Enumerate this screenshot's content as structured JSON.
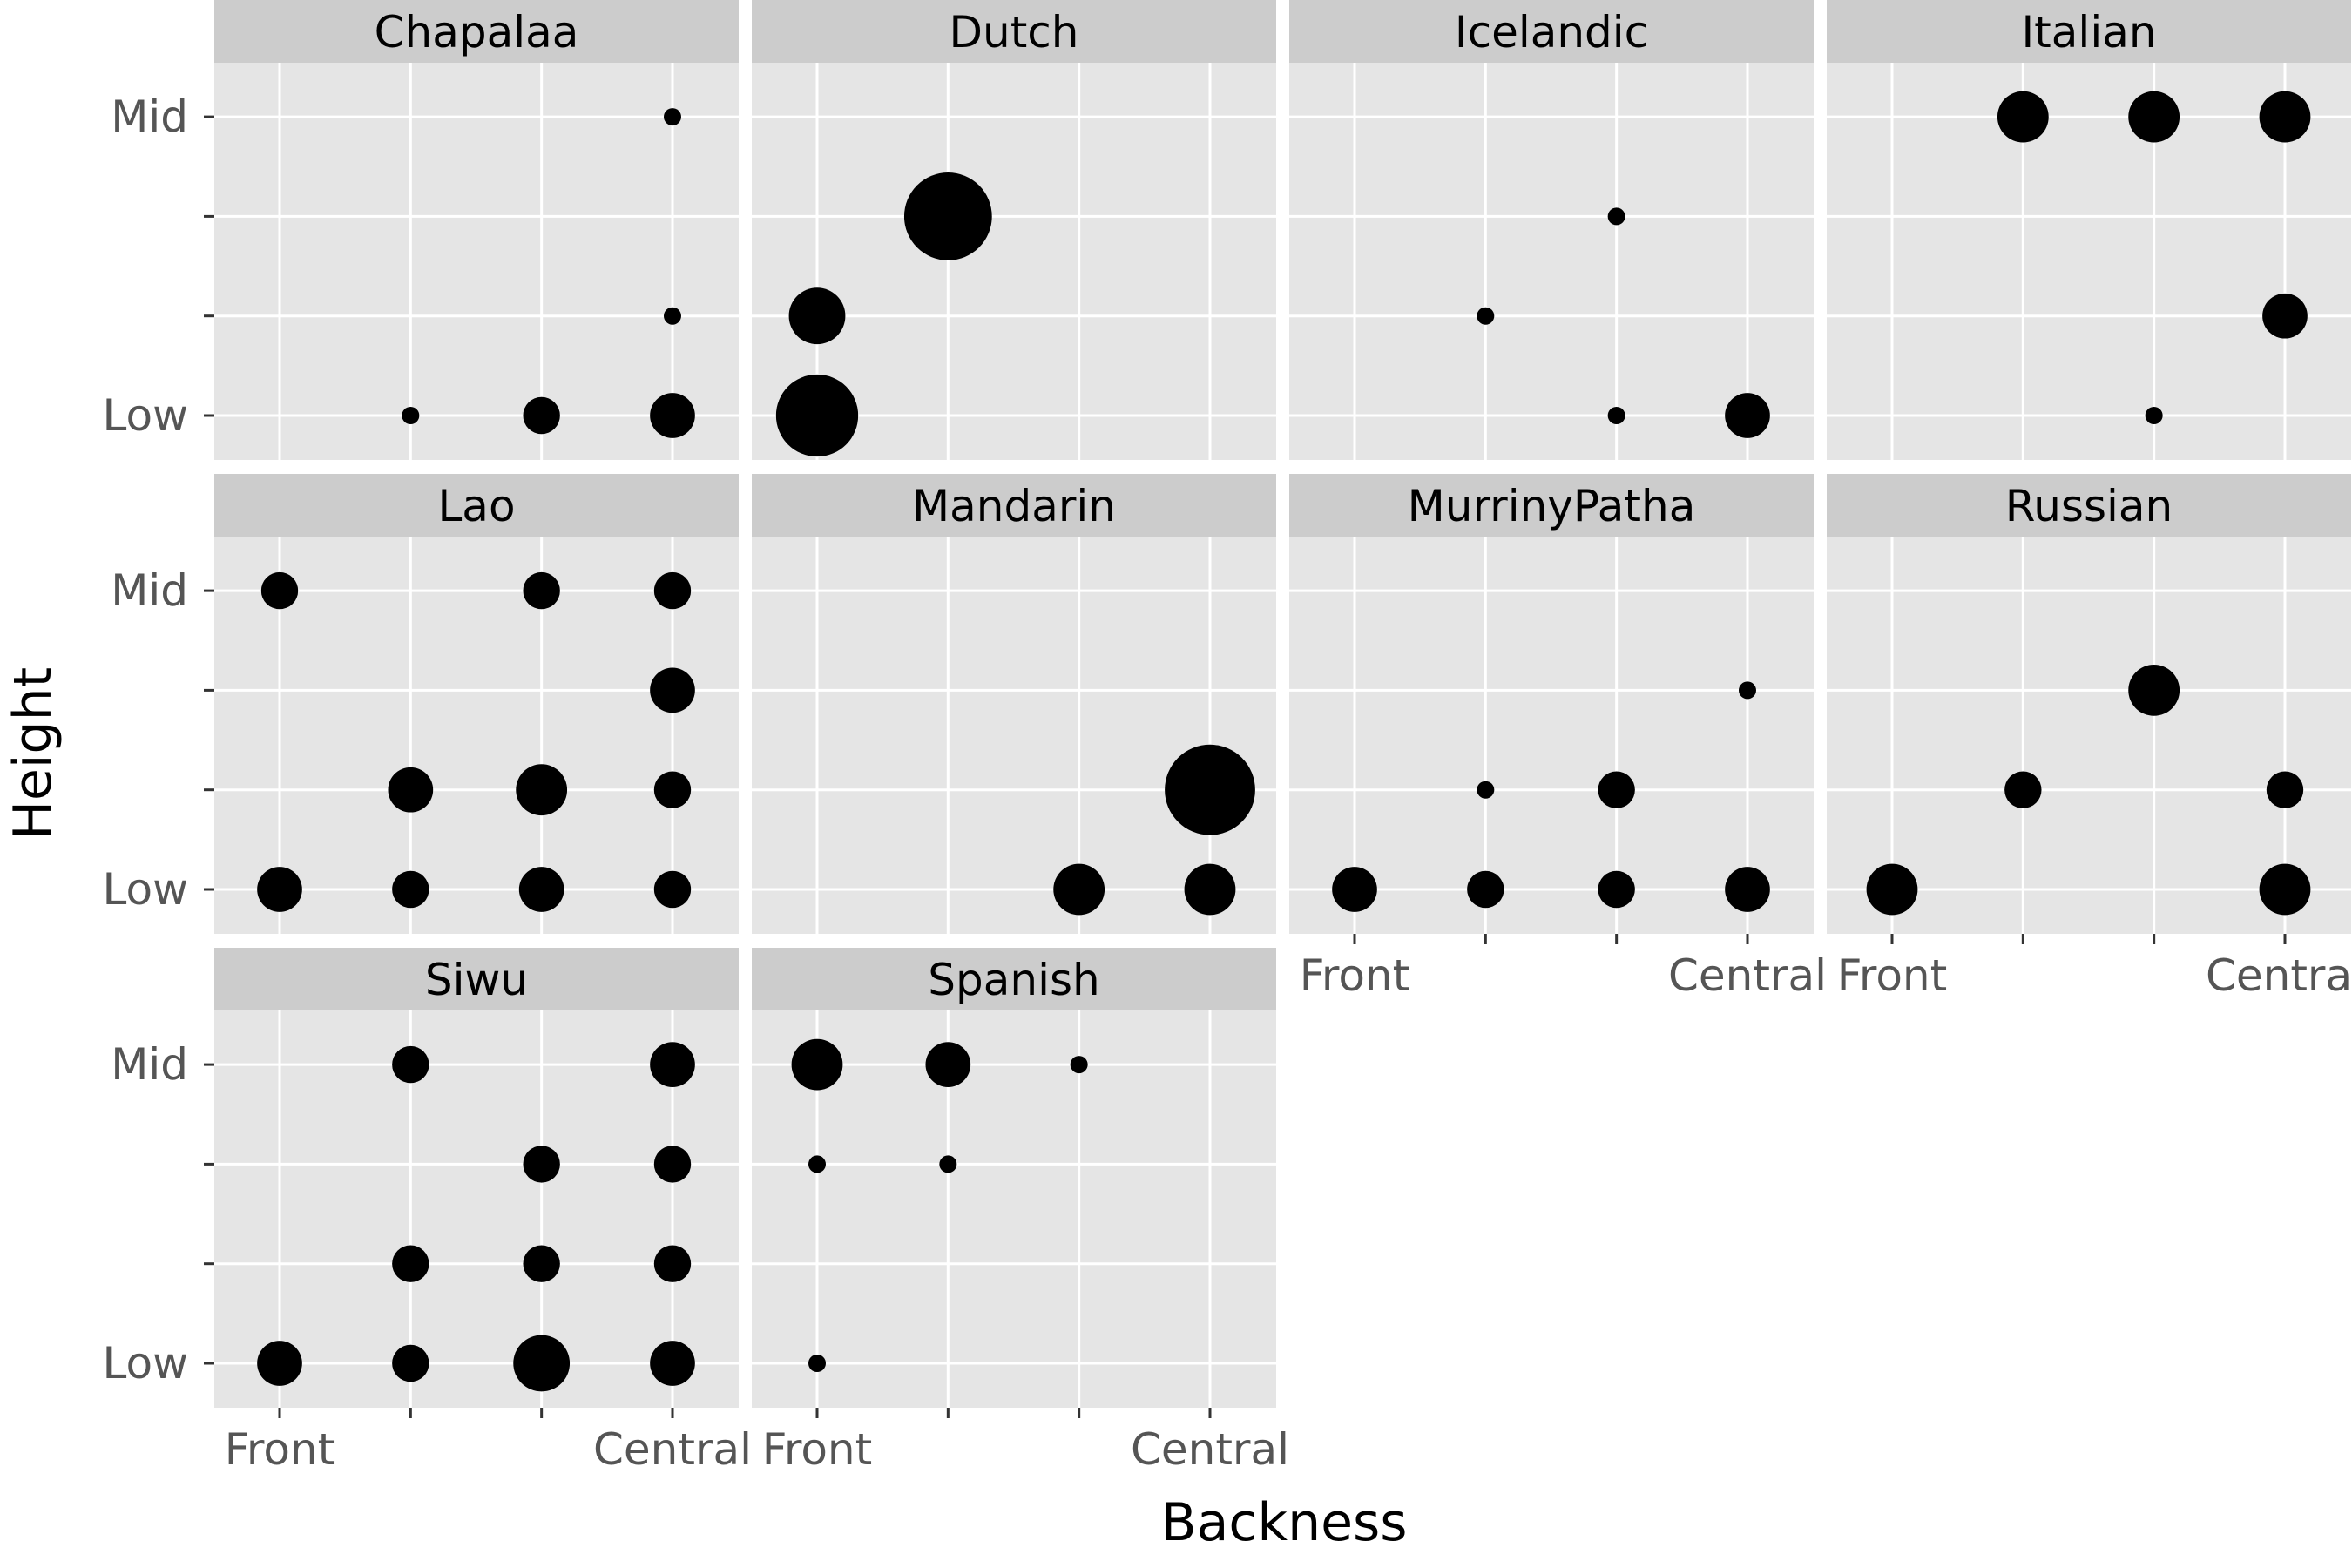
{
  "chart_data": {
    "type": "scatter",
    "xlabel": "Backness",
    "ylabel": "Height",
    "x_ticks": [
      "Front",
      "",
      "",
      "Central"
    ],
    "y_ticks": [
      "Low",
      "",
      "",
      "Mid"
    ],
    "xlim": [
      1,
      4
    ],
    "ylim": [
      1,
      4
    ],
    "grid": true,
    "legend": "none",
    "layout": {
      "columns": 4
    },
    "panels": [
      {
        "name": "Chapalaa",
        "points": [
          {
            "x": 4,
            "y": 4,
            "count": 1
          },
          {
            "x": 4,
            "y": 2,
            "count": 1
          },
          {
            "x": 2,
            "y": 1,
            "count": 1
          },
          {
            "x": 3,
            "y": 1,
            "count": 2
          },
          {
            "x": 4,
            "y": 1,
            "count": 3
          }
        ]
      },
      {
        "name": "Dutch",
        "points": [
          {
            "x": 2,
            "y": 3,
            "count": 14
          },
          {
            "x": 1,
            "y": 2,
            "count": 5
          },
          {
            "x": 1,
            "y": 1,
            "count": 12
          }
        ]
      },
      {
        "name": "Icelandic",
        "points": [
          {
            "x": 3,
            "y": 3,
            "count": 1
          },
          {
            "x": 2,
            "y": 2,
            "count": 1
          },
          {
            "x": 3,
            "y": 1,
            "count": 1
          },
          {
            "x": 4,
            "y": 1,
            "count": 3
          }
        ]
      },
      {
        "name": "Italian",
        "points": [
          {
            "x": 2,
            "y": 4,
            "count": 4
          },
          {
            "x": 3,
            "y": 4,
            "count": 4
          },
          {
            "x": 4,
            "y": 4,
            "count": 4
          },
          {
            "x": 4,
            "y": 2,
            "count": 3
          },
          {
            "x": 3,
            "y": 1,
            "count": 1
          }
        ]
      },
      {
        "name": "Lao",
        "points": [
          {
            "x": 1,
            "y": 4,
            "count": 2
          },
          {
            "x": 3,
            "y": 4,
            "count": 2
          },
          {
            "x": 4,
            "y": 4,
            "count": 2
          },
          {
            "x": 4,
            "y": 3,
            "count": 3
          },
          {
            "x": 2,
            "y": 2,
            "count": 3
          },
          {
            "x": 3,
            "y": 2,
            "count": 4
          },
          {
            "x": 4,
            "y": 2,
            "count": 2
          },
          {
            "x": 1,
            "y": 1,
            "count": 3
          },
          {
            "x": 2,
            "y": 1,
            "count": 2
          },
          {
            "x": 3,
            "y": 1,
            "count": 3
          },
          {
            "x": 4,
            "y": 1,
            "count": 2
          }
        ]
      },
      {
        "name": "Mandarin",
        "points": [
          {
            "x": 4,
            "y": 2,
            "count": 15
          },
          {
            "x": 3,
            "y": 1,
            "count": 4
          },
          {
            "x": 4,
            "y": 1,
            "count": 4
          }
        ]
      },
      {
        "name": "MurrinyPatha",
        "points": [
          {
            "x": 4,
            "y": 3,
            "count": 1
          },
          {
            "x": 2,
            "y": 2,
            "count": 1
          },
          {
            "x": 3,
            "y": 2,
            "count": 2
          },
          {
            "x": 1,
            "y": 1,
            "count": 3
          },
          {
            "x": 2,
            "y": 1,
            "count": 2
          },
          {
            "x": 3,
            "y": 1,
            "count": 2
          },
          {
            "x": 4,
            "y": 1,
            "count": 3
          }
        ]
      },
      {
        "name": "Russian",
        "points": [
          {
            "x": 3,
            "y": 3,
            "count": 4
          },
          {
            "x": 2,
            "y": 2,
            "count": 2
          },
          {
            "x": 4,
            "y": 2,
            "count": 2
          },
          {
            "x": 1,
            "y": 1,
            "count": 4
          },
          {
            "x": 4,
            "y": 1,
            "count": 4
          }
        ]
      },
      {
        "name": "Siwu",
        "points": [
          {
            "x": 2,
            "y": 4,
            "count": 2
          },
          {
            "x": 4,
            "y": 4,
            "count": 3
          },
          {
            "x": 3,
            "y": 3,
            "count": 2
          },
          {
            "x": 4,
            "y": 3,
            "count": 2
          },
          {
            "x": 2,
            "y": 2,
            "count": 2
          },
          {
            "x": 3,
            "y": 2,
            "count": 2
          },
          {
            "x": 4,
            "y": 2,
            "count": 2
          },
          {
            "x": 1,
            "y": 1,
            "count": 3
          },
          {
            "x": 2,
            "y": 1,
            "count": 2
          },
          {
            "x": 3,
            "y": 1,
            "count": 5
          },
          {
            "x": 4,
            "y": 1,
            "count": 3
          }
        ]
      },
      {
        "name": "Spanish",
        "points": [
          {
            "x": 1,
            "y": 4,
            "count": 4
          },
          {
            "x": 2,
            "y": 4,
            "count": 3
          },
          {
            "x": 3,
            "y": 4,
            "count": 1
          },
          {
            "x": 1,
            "y": 3,
            "count": 1
          },
          {
            "x": 2,
            "y": 3,
            "count": 1
          },
          {
            "x": 1,
            "y": 1,
            "count": 1
          }
        ]
      }
    ]
  }
}
